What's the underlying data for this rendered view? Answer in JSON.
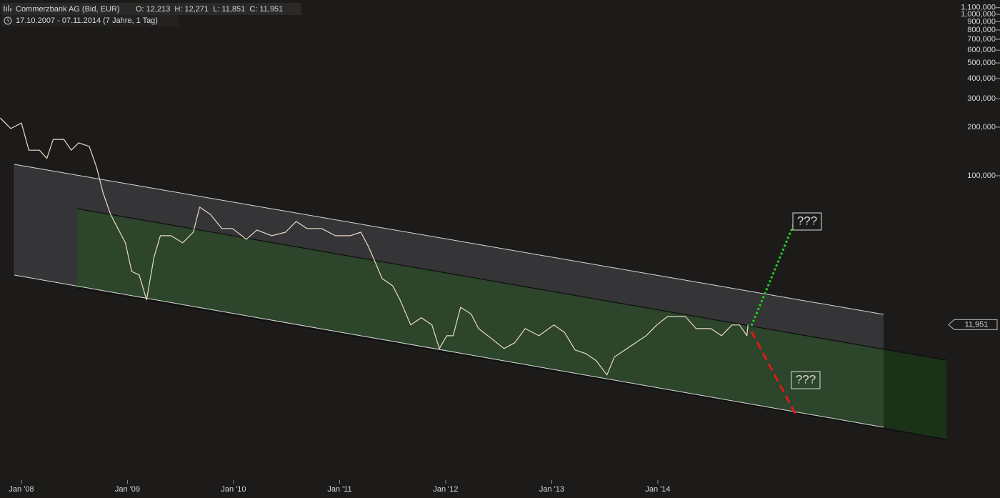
{
  "chart_data": {
    "type": "line",
    "title": "Commerzbank AG (Bid, EUR)",
    "ohlc": "O: 12,213  H: 12,271  L: 11,851  C: 11,951",
    "period": "17.10.2007 - 07.11.2014 (7 Jahre, 1 Tag)",
    "color": "#eadcc4",
    "log_scale": true,
    "x": [
      2007.8,
      2007.9,
      2008.0,
      2008.07,
      2008.17,
      2008.24,
      2008.3,
      2008.4,
      2008.47,
      2008.54,
      2008.64,
      2008.71,
      2008.77,
      2008.84,
      2008.91,
      2008.98,
      2009.04,
      2009.11,
      2009.18,
      2009.25,
      2009.31,
      2009.41,
      2009.52,
      2009.62,
      2009.68,
      2009.78,
      2009.89,
      2009.99,
      2010.12,
      2010.22,
      2010.36,
      2010.49,
      2010.59,
      2010.69,
      2010.83,
      2010.96,
      2011.1,
      2011.2,
      2011.27,
      2011.33,
      2011.4,
      2011.5,
      2011.57,
      2011.67,
      2011.77,
      2011.87,
      2011.94,
      2012.01,
      2012.07,
      2012.14,
      2012.24,
      2012.31,
      2012.44,
      2012.55,
      2012.65,
      2012.75,
      2012.88,
      2013.02,
      2013.12,
      2013.22,
      2013.32,
      2013.42,
      2013.52,
      2013.59,
      2013.69,
      2013.79,
      2013.89,
      2013.99,
      2014.09,
      2014.26,
      2014.36,
      2014.5,
      2014.6,
      2014.7,
      2014.77,
      2014.84,
      2014.85
    ],
    "values": [
      228000,
      196000,
      212000,
      144000,
      144000,
      128000,
      168000,
      168000,
      144000,
      160000,
      152000,
      112000,
      78300,
      57700,
      47100,
      38400,
      25500,
      24300,
      17000,
      31300,
      42500,
      42500,
      38400,
      44700,
      63900,
      57700,
      47100,
      47100,
      40400,
      46100,
      42500,
      44700,
      52100,
      47100,
      47100,
      42500,
      42500,
      44700,
      36500,
      29700,
      23100,
      20800,
      17000,
      11900,
      13200,
      11900,
      8500,
      10200,
      10200,
      15300,
      13900,
      11300,
      9700,
      8500,
      9220,
      11300,
      10200,
      11900,
      10700,
      8330,
      7910,
      7140,
      5830,
      7520,
      8330,
      9220,
      10200,
      11900,
      13400,
      13400,
      11300,
      11300,
      10200,
      11900,
      11900,
      10200,
      11951
    ],
    "last_price": {
      "value": 11951,
      "label": "11,951"
    },
    "xlim": [
      2007.798,
      2017.226
    ],
    "xticks": [
      {
        "value": 2008,
        "label": "Jan '08"
      },
      {
        "value": 2009,
        "label": "Jan '09"
      },
      {
        "value": 2010,
        "label": "Jan '10"
      },
      {
        "value": 2011,
        "label": "Jan '11"
      },
      {
        "value": 2012,
        "label": "Jan '12"
      },
      {
        "value": 2013,
        "label": "Jan '13"
      },
      {
        "value": 2014,
        "label": "Jan '14"
      }
    ],
    "ylim": [
      1300,
      1227000
    ],
    "yticks": [
      {
        "value": 100000,
        "label": "100,000"
      },
      {
        "value": 200000,
        "label": "200,000"
      },
      {
        "value": 300000,
        "label": "300,000"
      },
      {
        "value": 400000,
        "label": "400,000"
      },
      {
        "value": 500000,
        "label": "500,000"
      },
      {
        "value": 600000,
        "label": "600,000"
      },
      {
        "value": 700000,
        "label": "700,000"
      },
      {
        "value": 800000,
        "label": "800,000"
      },
      {
        "value": 900000,
        "label": "900,000"
      },
      {
        "value": 1000000,
        "label": "1,000,000"
      },
      {
        "value": 1100000,
        "label": "1,100,000"
      }
    ],
    "annotations": [
      "???",
      "???"
    ]
  }
}
